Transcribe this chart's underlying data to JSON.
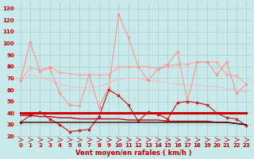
{
  "x": [
    0,
    1,
    2,
    3,
    4,
    5,
    6,
    7,
    8,
    9,
    10,
    11,
    12,
    13,
    14,
    15,
    16,
    17,
    18,
    19,
    20,
    21,
    22,
    23
  ],
  "line_rafales_max": [
    68,
    101,
    76,
    79,
    57,
    47,
    46,
    73,
    45,
    62,
    125,
    105,
    80,
    68,
    78,
    82,
    93,
    50,
    84,
    84,
    73,
    84,
    57,
    65
  ],
  "line_rafales_mid": [
    68,
    79,
    77,
    80,
    75,
    74,
    73,
    73,
    73,
    73,
    80,
    80,
    80,
    80,
    78,
    80,
    82,
    82,
    84,
    84,
    84,
    73,
    72,
    65
  ],
  "line_rafales_low": [
    68,
    73,
    71,
    68,
    65,
    63,
    62,
    62,
    63,
    66,
    69,
    70,
    70,
    68,
    67,
    66,
    65,
    64,
    64,
    63,
    63,
    61,
    60,
    58
  ],
  "line_moyen_var": [
    32,
    38,
    41,
    35,
    30,
    24,
    25,
    26,
    37,
    60,
    55,
    47,
    33,
    41,
    39,
    35,
    49,
    50,
    49,
    47,
    40,
    36,
    35,
    29
  ],
  "line_flat_thick": [
    40,
    40,
    40,
    40,
    40,
    40,
    40,
    40,
    40,
    40,
    40,
    40,
    40,
    40,
    40,
    40,
    40,
    40,
    40,
    40,
    40,
    40,
    40,
    40
  ],
  "line_declining": [
    38,
    38,
    37,
    37,
    36,
    36,
    35,
    35,
    35,
    35,
    35,
    34,
    34,
    34,
    34,
    33,
    33,
    33,
    33,
    33,
    32,
    32,
    31,
    30
  ],
  "line_flat_dark": [
    32,
    32,
    32,
    32,
    32,
    32,
    32,
    32,
    32,
    32,
    32,
    32,
    32,
    32,
    32,
    32,
    32,
    32,
    32,
    32,
    32,
    32,
    31,
    30
  ],
  "bg_color": "#c8eaea",
  "grid_color": "#aacccc",
  "color_light_pink": "#ff9999",
  "color_mid_pink": "#ffaaaa",
  "color_pale_pink": "#ffbbbb",
  "color_dark_red_marker": "#cc2222",
  "color_thick_red": "#cc0000",
  "color_declining_red": "#cc0000",
  "color_dark_line": "#330000",
  "xlabel": "Vent moyen/en rafales ( km/h )",
  "ylim": [
    15,
    135
  ],
  "yticks": [
    20,
    30,
    40,
    50,
    60,
    70,
    80,
    90,
    100,
    110,
    120,
    130
  ],
  "xticks": [
    0,
    1,
    2,
    3,
    4,
    5,
    6,
    7,
    8,
    9,
    10,
    11,
    12,
    13,
    14,
    15,
    16,
    17,
    18,
    19,
    20,
    21,
    22,
    23
  ],
  "tick_fontsize": 5.0,
  "xlabel_fontsize": 6.0
}
